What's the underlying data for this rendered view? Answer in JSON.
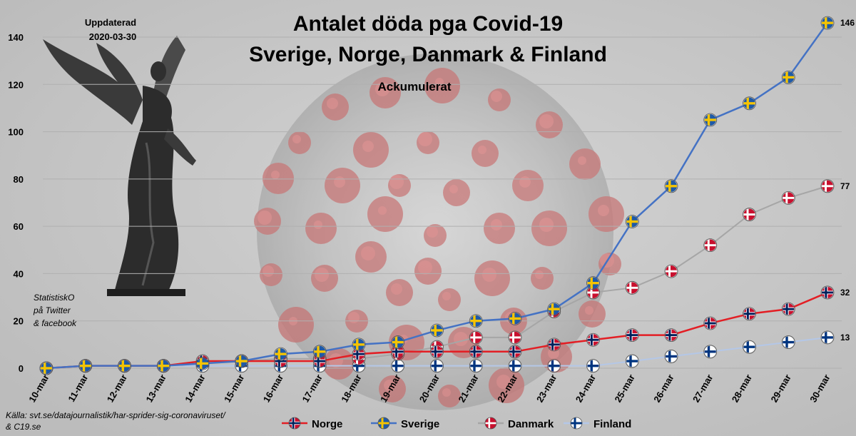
{
  "header": {
    "title_line1": "Antalet döda pga Covid-19",
    "title_line2": "Sverige, Norge, Danmark & Finland",
    "subtitle": "Ackumulerat",
    "updated_label": "Uppdaterad",
    "updated_date": "2020-03-30"
  },
  "credit": [
    "StatistiskO",
    "på Twitter",
    "& facebook"
  ],
  "source": [
    "Källa: svt.se/datajournalistik/har-sprider-sig-coronaviruset/",
    "& C19.se"
  ],
  "colors": {
    "background": "#c9c9c9",
    "Norge": "#e31e24",
    "Sverige": "#4472c4",
    "Danmark": "#a6a6a6",
    "Finland": "#b4c7e7"
  },
  "icons": {
    "background": "coronavirus-image",
    "decoration": "angel-statue-image",
    "markers": {
      "Norge": "norway-flag-icon",
      "Sverige": "sweden-flag-icon",
      "Danmark": "denmark-flag-icon",
      "Finland": "finland-flag-icon"
    }
  },
  "chart_data": {
    "type": "line",
    "categories": [
      "10-mar",
      "11-mar",
      "12-mar",
      "13-mar",
      "14-mar",
      "15-mar",
      "16-mar",
      "17-mar",
      "18-mar",
      "19-mar",
      "20-mar",
      "21-mar",
      "22-mar",
      "23-mar",
      "24-mar",
      "25-mar",
      "26-mar",
      "27-mar",
      "28-mar",
      "29-mar",
      "30-mar"
    ],
    "ylim": [
      0,
      140
    ],
    "yticks": [
      0,
      20,
      40,
      60,
      80,
      100,
      120,
      140
    ],
    "grid": true,
    "legend_position": "bottom",
    "series": [
      {
        "name": "Norge",
        "values": [
          0,
          1,
          1,
          1,
          3,
          3,
          3,
          3,
          6,
          7,
          7,
          7,
          7,
          10,
          12,
          14,
          14,
          19,
          23,
          25,
          32
        ],
        "end_label": "32"
      },
      {
        "name": "Sverige",
        "values": [
          0,
          1,
          1,
          1,
          2,
          3,
          6,
          7,
          10,
          11,
          16,
          20,
          21,
          25,
          36,
          62,
          77,
          105,
          112,
          123,
          146
        ],
        "end_label": "146"
      },
      {
        "name": "Danmark",
        "values": [
          0,
          1,
          1,
          1,
          2,
          3,
          4,
          4,
          4,
          6,
          9,
          13,
          13,
          24,
          32,
          34,
          41,
          52,
          65,
          72,
          77
        ],
        "end_label": "77"
      },
      {
        "name": "Finland",
        "values": [
          0,
          1,
          1,
          1,
          1,
          1,
          1,
          1,
          1,
          1,
          1,
          1,
          1,
          1,
          1,
          3,
          5,
          7,
          9,
          11,
          13
        ],
        "end_label": "13"
      }
    ]
  }
}
